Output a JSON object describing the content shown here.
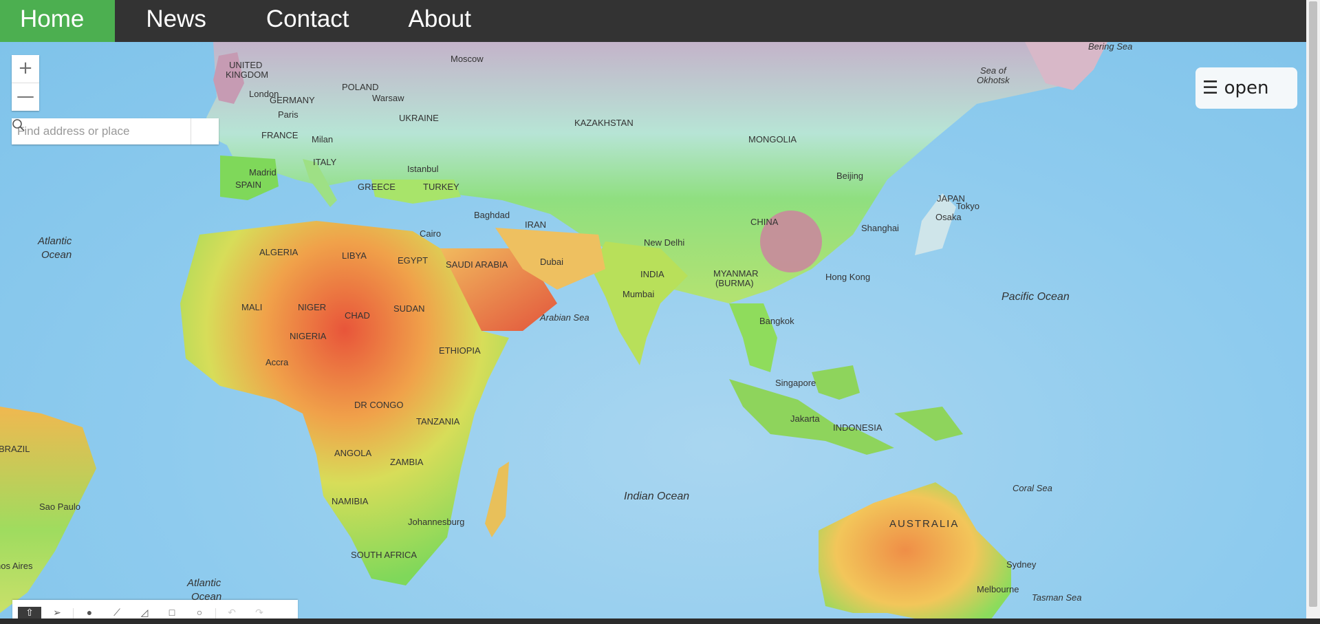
{
  "nav": {
    "items": [
      {
        "label": "Home",
        "active": true
      },
      {
        "label": "News"
      },
      {
        "label": "Contact"
      },
      {
        "label": "About"
      }
    ]
  },
  "map": {
    "zoom_in": "+",
    "zoom_out": "—",
    "search_placeholder": "Find address or place",
    "open_button": "☰ open",
    "labels": {
      "ocean": [
        "Atlantic",
        "Ocean",
        "Arabian Sea",
        "Indian Ocean",
        "Pacific Ocean",
        "Coral Sea",
        "Tasman Sea",
        "Bering Sea",
        "Sea of",
        "Okhotsk",
        "Atlantic",
        "Ocean"
      ],
      "countries": [
        "UNITED",
        "KINGDOM",
        "GERMANY",
        "POLAND",
        "UKRAINE",
        "FRANCE",
        "ITALY",
        "SPAIN",
        "GREECE",
        "TURKEY",
        "KAZAKHSTAN",
        "MONGOLIA",
        "CHINA",
        "IRAN",
        "ALGERIA",
        "LIBYA",
        "EGYPT",
        "SAUDI ARABIA",
        "INDIA",
        "MYANMAR",
        "(BURMA)",
        "JAPAN",
        "MALI",
        "NIGER",
        "CHAD",
        "SUDAN",
        "NIGERIA",
        "ETHIOPIA",
        "DR CONGO",
        "TANZANIA",
        "ANGOLA",
        "ZAMBIA",
        "NAMIBIA",
        "SOUTH AFRICA",
        "INDONESIA",
        "AUSTRALIA",
        "BRAZIL"
      ],
      "cities": [
        "Moscow",
        "London",
        "Warsaw",
        "Paris",
        "Milan",
        "Madrid",
        "Istanbul",
        "Baghdad",
        "Cairo",
        "Dubai",
        "New Delhi",
        "Mumbai",
        "Bangkok",
        "Hong Kong",
        "Shanghai",
        "Beijing",
        "Tokyo",
        "Osaka",
        "Singapore",
        "Jakarta",
        "Accra",
        "Johannesburg",
        "Sao Paulo",
        "nos Aires",
        "Sydney",
        "Melbourne"
      ]
    }
  },
  "toolbar": {
    "tools": [
      "select-icon",
      "send-icon",
      "point-icon",
      "polyline-icon",
      "polygon-icon",
      "rectangle-icon",
      "circle-icon",
      "undo-icon",
      "redo-icon"
    ]
  },
  "colors": {
    "nav_bg": "#333333",
    "nav_active": "#4caf50",
    "ocean": "#8ecbee"
  }
}
